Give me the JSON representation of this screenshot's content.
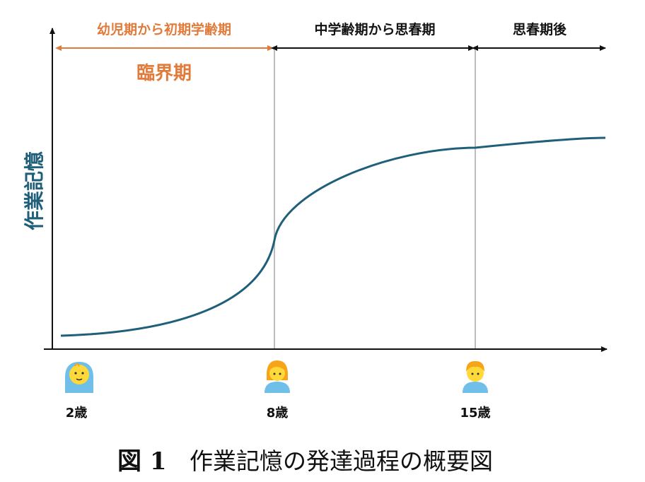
{
  "chart_data": {
    "type": "line",
    "ylabel": "作業記憶",
    "xlabel": "",
    "x_ticks": [
      "2歳",
      "8歳",
      "15歳"
    ],
    "periods": [
      {
        "label": "幼児期から初期学齢期",
        "from": "2歳",
        "to": "8歳"
      },
      {
        "label": "中学齢期から思春期",
        "from": "8歳",
        "to": "15歳"
      },
      {
        "label": "思春期後",
        "from": "15歳",
        "to": ""
      }
    ],
    "critical_period_label": "臨界期",
    "series": [
      {
        "values": [
          [
            2,
            0.05
          ],
          [
            4,
            0.12
          ],
          [
            6,
            0.27
          ],
          [
            8,
            0.5
          ],
          [
            10,
            0.74
          ],
          [
            12,
            0.82
          ],
          [
            15,
            0.88
          ],
          [
            18,
            0.93
          ]
        ]
      }
    ]
  },
  "caption": {
    "figure_number": "図 1",
    "text": "作業記憶の発達過程の概要図"
  },
  "colors": {
    "curve": "#1f5f7a",
    "critical": "#e07b3c",
    "axis": "#111111",
    "divider": "#bbbbbb",
    "skin": "#ffd83a",
    "hair": "#f6a51a",
    "shirt": "#6fbfe8"
  },
  "icons": [
    "baby-icon",
    "child-icon",
    "teen-icon"
  ]
}
